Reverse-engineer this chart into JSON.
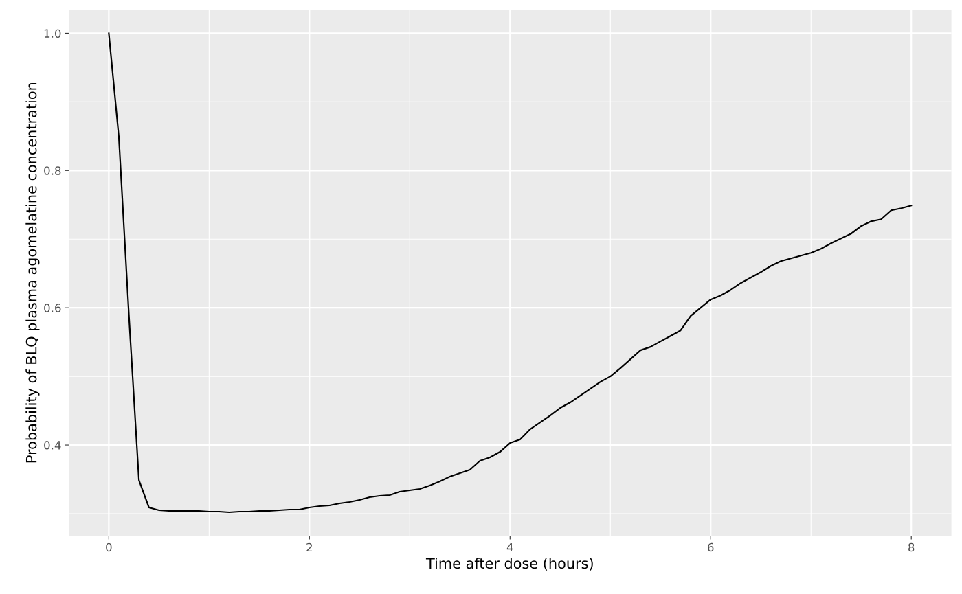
{
  "chart_data": {
    "type": "line",
    "xlabel": "Time after dose (hours)",
    "ylabel": "Probability of BLQ plasma agomelatine concentration",
    "x": [
      0,
      0.1,
      0.2,
      0.3,
      0.4,
      0.5,
      0.6,
      0.7,
      0.8,
      0.9,
      1.0,
      1.1,
      1.2,
      1.3,
      1.4,
      1.5,
      1.6,
      1.7,
      1.8,
      1.9,
      2.0,
      2.1,
      2.2,
      2.3,
      2.4,
      2.5,
      2.6,
      2.7,
      2.8,
      2.9,
      3.0,
      3.1,
      3.2,
      3.3,
      3.4,
      3.5,
      3.6,
      3.7,
      3.8,
      3.9,
      4.0,
      4.1,
      4.2,
      4.3,
      4.4,
      4.5,
      4.6,
      4.7,
      4.8,
      4.9,
      5.0,
      5.1,
      5.2,
      5.3,
      5.4,
      5.5,
      5.6,
      5.7,
      5.8,
      5.9,
      6.0,
      6.1,
      6.2,
      6.3,
      6.4,
      6.5,
      6.6,
      6.7,
      6.8,
      6.9,
      7.0,
      7.1,
      7.2,
      7.3,
      7.4,
      7.5,
      7.6,
      7.7,
      7.8,
      7.9,
      8.0
    ],
    "series": [
      {
        "color": "#000000",
        "values": [
          1.0,
          0.849,
          0.59,
          0.349,
          0.309,
          0.305,
          0.304,
          0.304,
          0.304,
          0.304,
          0.303,
          0.303,
          0.302,
          0.303,
          0.303,
          0.304,
          0.304,
          0.305,
          0.306,
          0.306,
          0.309,
          0.311,
          0.312,
          0.315,
          0.317,
          0.32,
          0.324,
          0.326,
          0.327,
          0.332,
          0.334,
          0.336,
          0.341,
          0.347,
          0.354,
          0.359,
          0.364,
          0.377,
          0.382,
          0.39,
          0.403,
          0.408,
          0.423,
          0.433,
          0.443,
          0.454,
          0.462,
          0.472,
          0.482,
          0.492,
          0.5,
          0.512,
          0.525,
          0.538,
          0.543,
          0.551,
          0.559,
          0.567,
          0.588,
          0.6,
          0.612,
          0.618,
          0.626,
          0.636,
          0.644,
          0.652,
          0.661,
          0.668,
          0.672,
          0.676,
          0.68,
          0.686,
          0.694,
          0.701,
          0.708,
          0.719,
          0.726,
          0.729,
          0.742,
          0.745,
          0.749
        ]
      }
    ],
    "xlim": [
      -0.4,
      8.4
    ],
    "ylim": [
      0.268,
      1.034
    ],
    "xticks": [
      0,
      2,
      4,
      6,
      8
    ],
    "yticks": [
      0.4,
      0.6,
      0.8,
      {
        "value": 1,
        "label": "1.0"
      }
    ],
    "grid": true,
    "marker": "none",
    "line_style": "solid",
    "legend": false
  }
}
